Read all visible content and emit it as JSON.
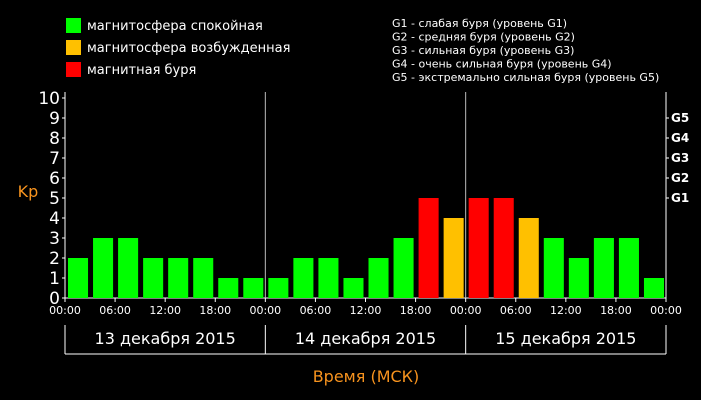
{
  "legend": [
    {
      "label": "магнитосфера спокойная",
      "color": "#00ff00"
    },
    {
      "label": "магнитосфера возбужденная",
      "color": "#ffc000"
    },
    {
      "label": "магнитная буря",
      "color": "#ff0000"
    }
  ],
  "storm_levels": [
    "G1 - слабая буря (уровень G1)",
    "G2 - средняя буря (уровень G2)",
    "G3 - сильная буря (уровень G3)",
    "G4 - очень сильная буря (уровень G4)",
    "G5 - экстремально сильная буря (уровень G5)"
  ],
  "chart_data": {
    "type": "bar",
    "ylabel": "Kp",
    "xlabel": "Время (МСК)",
    "ylim": [
      0,
      10
    ],
    "yticks": [
      "0",
      "1",
      "2",
      "3",
      "4",
      "5",
      "6",
      "7",
      "8",
      "9",
      "10"
    ],
    "right_ticks": [
      {
        "label": "G1",
        "value": 5
      },
      {
        "label": "G2",
        "value": 6
      },
      {
        "label": "G3",
        "value": 7
      },
      {
        "label": "G4",
        "value": 8
      },
      {
        "label": "G5",
        "value": 9
      }
    ],
    "xticks": [
      "00:00",
      "06:00",
      "12:00",
      "18:00",
      "00:00",
      "06:00",
      "12:00",
      "18:00",
      "00:00",
      "06:00",
      "12:00",
      "18:00",
      "00:00"
    ],
    "days": [
      "13 декабря 2015",
      "14 декабря 2015",
      "15 декабря 2015"
    ],
    "colors": {
      "quiet": "#00ff00",
      "active": "#ffc000",
      "storm": "#ff0000"
    },
    "values": [
      2,
      3,
      3,
      2,
      2,
      2,
      1,
      1,
      1,
      2,
      2,
      1,
      2,
      3,
      5,
      4,
      5,
      5,
      4,
      3,
      2,
      3,
      3,
      1
    ],
    "grid": false
  }
}
